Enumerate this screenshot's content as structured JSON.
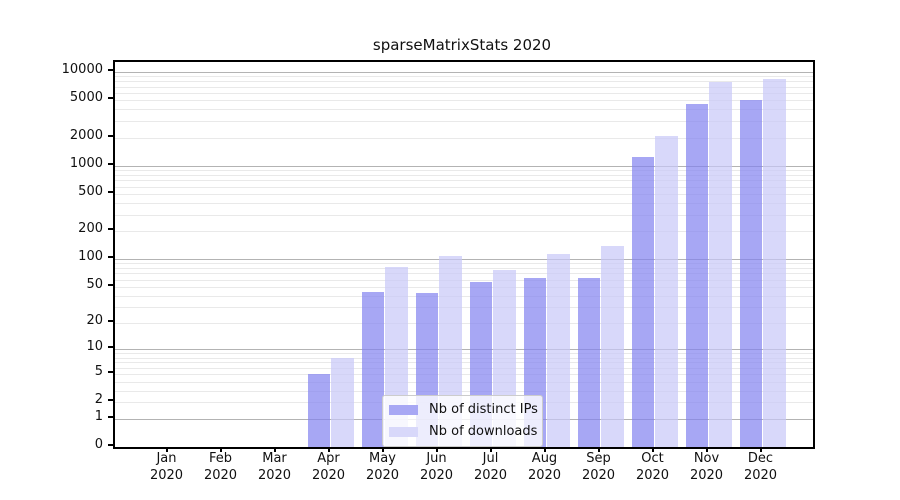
{
  "title": "sparseMatrixStats 2020",
  "colors": {
    "ips_bar": "#a7a7f4",
    "downloads_bar": "#d8d8fa",
    "ips_bar_rgba": "rgba(129,129,239,0.7)",
    "downloads_bar_rgba": "rgba(199,199,248,0.7)",
    "major_grid": "#b3b3b3",
    "minor_grid": "#e9e9e9",
    "spine": "#000000"
  },
  "chart_data": {
    "type": "bar",
    "title": "sparseMatrixStats 2020",
    "xlabel": "",
    "ylabel": "",
    "yscale": "log1p",
    "grid": true,
    "legend_position": "lower center",
    "ylim": [
      0,
      12500
    ],
    "yticks": [
      10000,
      5000,
      2000,
      1000,
      500,
      200,
      100,
      50,
      20,
      10,
      5,
      2,
      1,
      0
    ],
    "categories": [
      {
        "month": "Jan",
        "year": "2020"
      },
      {
        "month": "Feb",
        "year": "2020"
      },
      {
        "month": "Mar",
        "year": "2020"
      },
      {
        "month": "Apr",
        "year": "2020"
      },
      {
        "month": "May",
        "year": "2020"
      },
      {
        "month": "Jun",
        "year": "2020"
      },
      {
        "month": "Jul",
        "year": "2020"
      },
      {
        "month": "Aug",
        "year": "2020"
      },
      {
        "month": "Sep",
        "year": "2020"
      },
      {
        "month": "Oct",
        "year": "2020"
      },
      {
        "month": "Nov",
        "year": "2020"
      },
      {
        "month": "Dec",
        "year": "2020"
      }
    ],
    "series": [
      {
        "name": "Nb of distinct IPs",
        "swatch_color": "#a7a7f4",
        "bar_color": "rgba(129,129,239,0.7)",
        "values": [
          0,
          0,
          0,
          5,
          44,
          43,
          57,
          63,
          63,
          1230,
          4530,
          5050
        ]
      },
      {
        "name": "Nb of downloads",
        "swatch_color": "#d8d8fa",
        "bar_color": "rgba(199,199,248,0.7)",
        "values": [
          0,
          0,
          0,
          8,
          82,
          107,
          77,
          115,
          137,
          2080,
          7750,
          8400
        ]
      }
    ]
  }
}
